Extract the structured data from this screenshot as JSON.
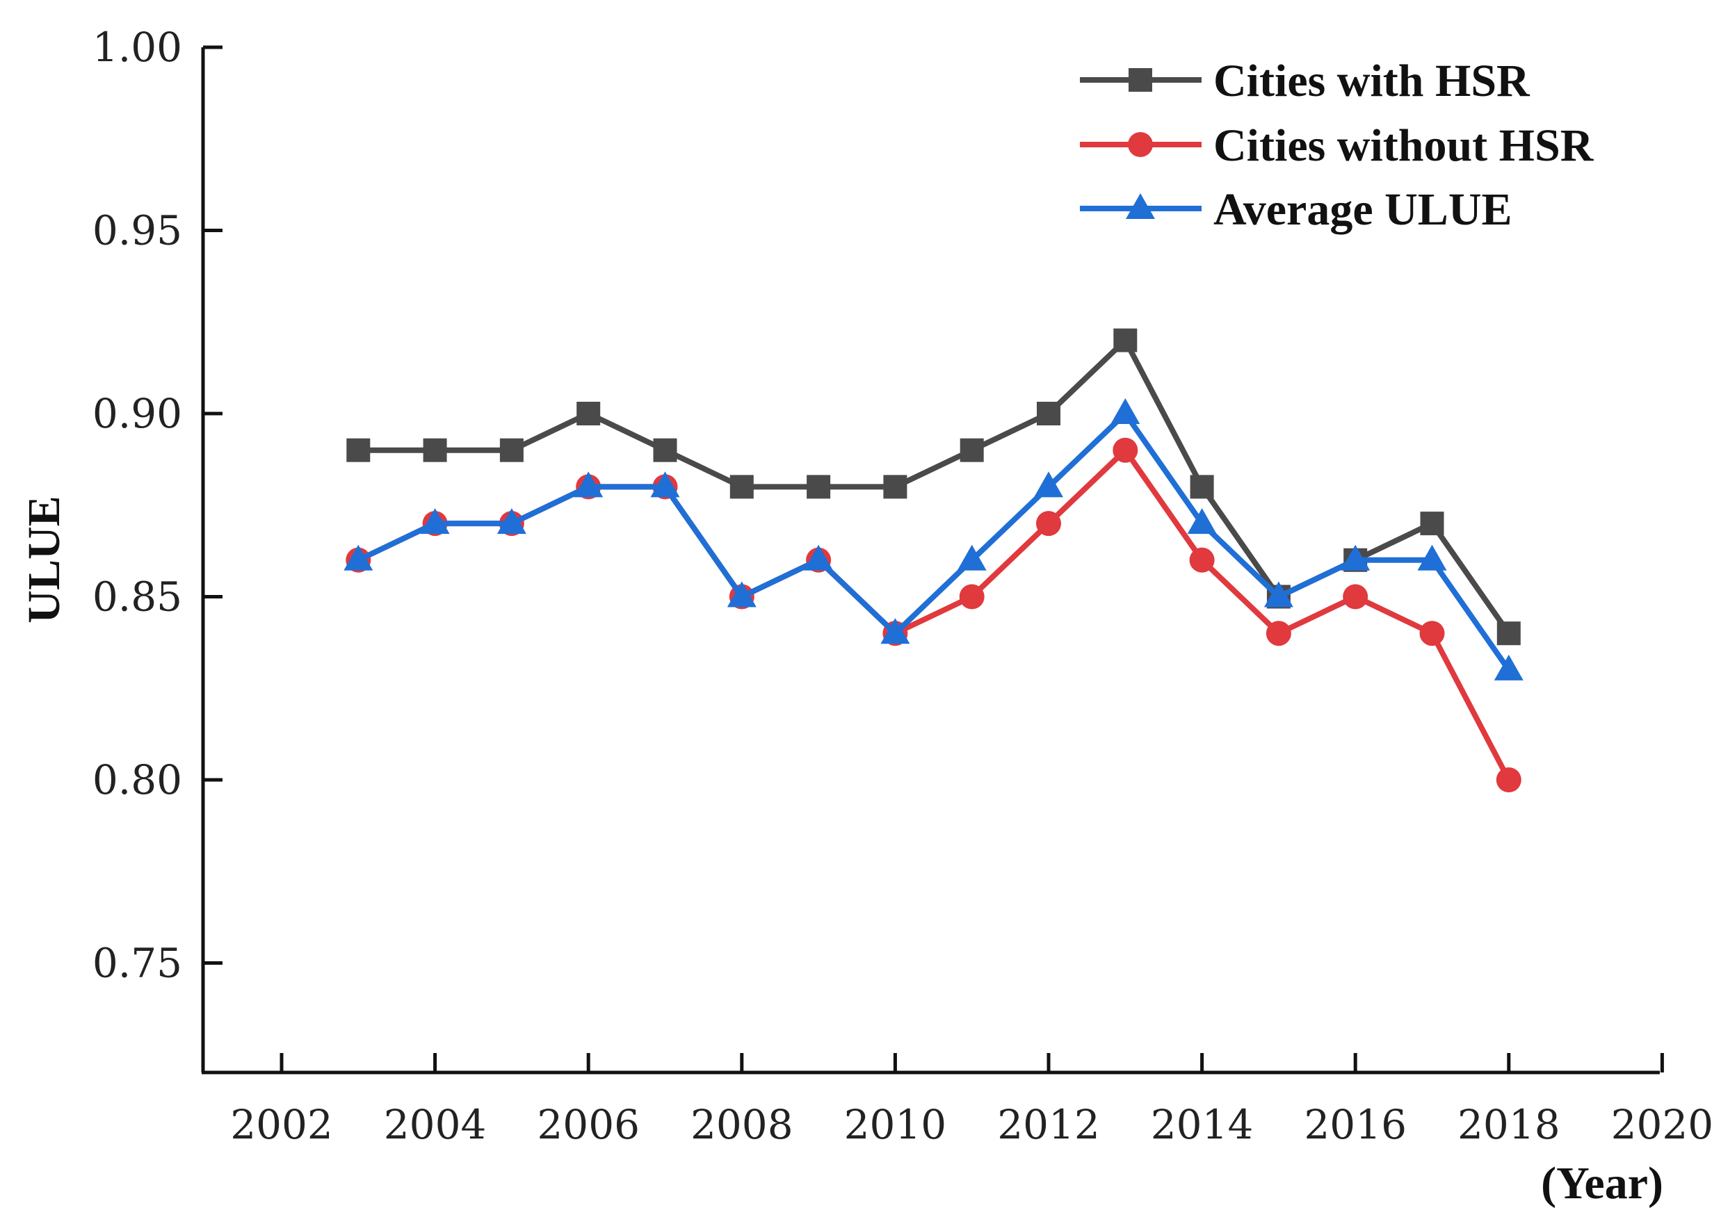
{
  "chart_data": {
    "type": "line",
    "title": "",
    "xlabel": "(Year)",
    "ylabel": "ULUE",
    "xlim": [
      2001,
      2020
    ],
    "ylim": [
      0.72,
      1.0
    ],
    "x_ticks": [
      "2002",
      "2004",
      "2006",
      "2008",
      "2010",
      "2012",
      "2014",
      "2016",
      "2018",
      "2020"
    ],
    "y_ticks": [
      "0.75",
      "0.80",
      "0.85",
      "0.90",
      "0.95",
      "1.00"
    ],
    "x_tick_values": [
      2002,
      2004,
      2006,
      2008,
      2010,
      2012,
      2014,
      2016,
      2018,
      2020
    ],
    "y_tick_values": [
      0.75,
      0.8,
      0.85,
      0.9,
      0.95,
      1.0
    ],
    "grid": false,
    "legend_position": "top-right",
    "x": [
      2003,
      2004,
      2005,
      2006,
      2007,
      2008,
      2009,
      2010,
      2011,
      2012,
      2013,
      2014,
      2015,
      2016,
      2017,
      2018
    ],
    "series": [
      {
        "name": "Cities with HSR",
        "marker": "square",
        "color": "#4a4a4a",
        "values": [
          0.89,
          0.89,
          0.89,
          0.9,
          0.89,
          0.88,
          0.88,
          0.88,
          0.89,
          0.9,
          0.92,
          0.88,
          0.85,
          0.86,
          0.87,
          0.84
        ]
      },
      {
        "name": "Cities without HSR",
        "marker": "circle",
        "color": "#e0393e",
        "values": [
          0.86,
          0.87,
          0.87,
          0.88,
          0.88,
          0.85,
          0.86,
          0.84,
          0.85,
          0.87,
          0.89,
          0.86,
          0.84,
          0.85,
          0.84,
          0.8
        ]
      },
      {
        "name": "Average ULUE",
        "marker": "triangle",
        "color": "#1f6fd6",
        "values": [
          0.86,
          0.87,
          0.87,
          0.88,
          0.88,
          0.85,
          0.86,
          0.84,
          0.86,
          0.88,
          0.9,
          0.87,
          0.85,
          0.86,
          0.86,
          0.83
        ]
      }
    ]
  }
}
